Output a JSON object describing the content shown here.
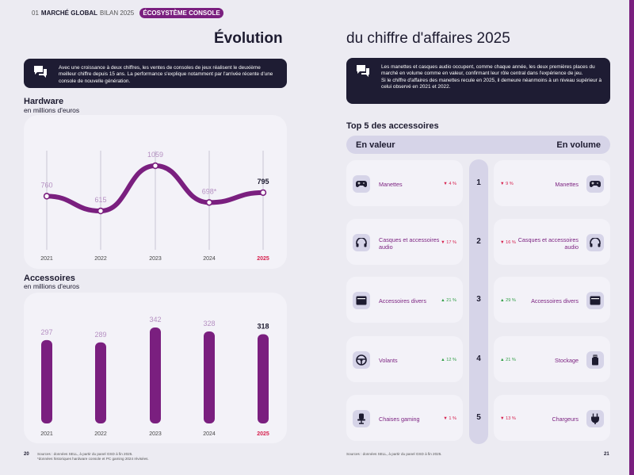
{
  "header": {
    "page_ref": "01",
    "market": "MARCHÉ GLOBAL",
    "report": "BILAN 2025",
    "tag": "ÉCOSYSTÈME CONSOLE"
  },
  "title": {
    "left": "Évolution",
    "right": "du chiffre d'affaires 2025"
  },
  "notes": {
    "left": "Avec une croissance à deux chiffres, les ventes de consoles de jeux réalisent le deuxième meilleur chiffre depuis 15 ans. La performance s'explique notamment par l'arrivée récente d'une console de nouvelle génération.",
    "right_1": "Les manettes et casques audio occupent, comme chaque année, les deux premières places du marché en volume comme en valeur, confirmant leur rôle central dans l'expérience de jeu.",
    "right_2": "Si le chiffre d'affaires des manettes recule en 2025, il demeure néanmoins à un niveau supérieur à celui observé en 2021 et 2022."
  },
  "sections": {
    "hardware_title": "Hardware",
    "hardware_sub": "en millions d'euros",
    "accessoires_title": "Accessoires",
    "accessoires_sub": "en millions d'euros"
  },
  "chart_data": [
    {
      "type": "line",
      "title": "Hardware",
      "ylabel": "en millions d'euros",
      "categories": [
        "2021",
        "2022",
        "2023",
        "2024",
        "2025"
      ],
      "labels": [
        "760",
        "615",
        "1059",
        "698*",
        "795"
      ],
      "values": [
        760,
        615,
        1059,
        698,
        795
      ],
      "highlight": "2025",
      "color": "#7a1f7f"
    },
    {
      "type": "bar",
      "title": "Accessoires",
      "ylabel": "en millions d'euros",
      "categories": [
        "2021",
        "2022",
        "2023",
        "2024",
        "2025"
      ],
      "values": [
        297,
        289,
        342,
        328,
        318
      ],
      "highlight": "2025",
      "color": "#7a1f7f"
    }
  ],
  "footer": {
    "left_sources": "Sources : données SELL, à partir du panel GSD à fin 2025.",
    "left_note": "*données historiques hardware console et PC gaming 2024 révisées.",
    "right_sources": "Sources : données SELL, à partir du panel GSD à fin 2025.",
    "page_left": "20",
    "page_right": "21"
  },
  "top5": {
    "title": "Top 5 des accessoires",
    "valeur_label": "En valeur",
    "volume_label": "En volume",
    "ranks": [
      "1",
      "2",
      "3",
      "4",
      "5"
    ],
    "valeur": [
      {
        "name": "Manettes",
        "pct": "4 %",
        "dir": "down",
        "icon": "gamepad-icon"
      },
      {
        "name": "Casques et accessoires audio",
        "pct": "17 %",
        "dir": "down",
        "icon": "headphones-icon"
      },
      {
        "name": "Accessoires divers",
        "pct": "21 %",
        "dir": "up",
        "icon": "box-icon"
      },
      {
        "name": "Volants",
        "pct": "12 %",
        "dir": "up",
        "icon": "steering-wheel-icon"
      },
      {
        "name": "Chaises gaming",
        "pct": "1 %",
        "dir": "down",
        "icon": "chair-icon"
      }
    ],
    "volume": [
      {
        "name": "Manettes",
        "pct": "9 %",
        "dir": "down",
        "icon": "gamepad-icon"
      },
      {
        "name": "Casques et accessoires audio",
        "pct": "16 %",
        "dir": "down",
        "icon": "headphones-icon"
      },
      {
        "name": "Accessoires divers",
        "pct": "29 %",
        "dir": "up",
        "icon": "box-icon"
      },
      {
        "name": "Stockage",
        "pct": "21 %",
        "dir": "up",
        "icon": "usb-drive-icon"
      },
      {
        "name": "Chargeurs",
        "pct": "13 %",
        "dir": "down",
        "icon": "plug-icon"
      }
    ]
  }
}
